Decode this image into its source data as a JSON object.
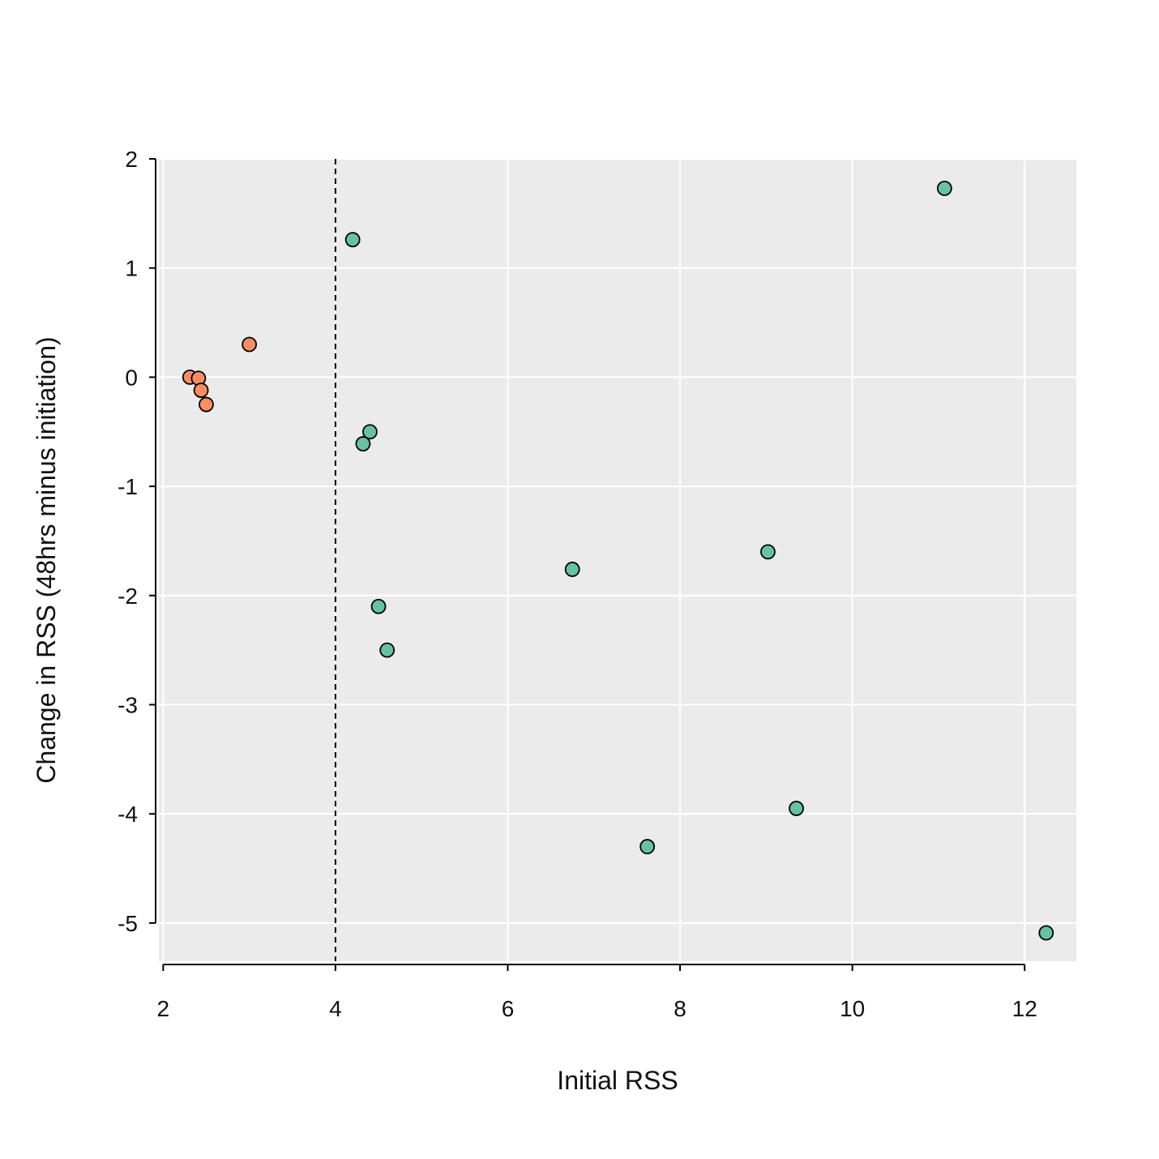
{
  "chart_data": {
    "type": "scatter",
    "title": "",
    "xlabel": "Initial RSS",
    "ylabel": "Change in RSS (48hrs minus initiation)",
    "xlim": [
      1.95,
      12.6
    ],
    "ylim": [
      -5.35,
      2.0
    ],
    "xticks": [
      2,
      4,
      6,
      8,
      10,
      12
    ],
    "yticks": [
      2,
      1,
      0,
      -1,
      -2,
      -3,
      -4,
      -5
    ],
    "xtick_labels": [
      "2",
      "4",
      "6",
      "8",
      "10",
      "12"
    ],
    "ytick_labels": [
      "2",
      "1",
      "0",
      "-1",
      "-2",
      "-3",
      "-4",
      "-5"
    ],
    "grid": true,
    "background": "#ebebeb",
    "grid_color": "#ffffff",
    "reference_line": {
      "x": 4,
      "style": "dashed",
      "color": "#000000"
    },
    "series": [
      {
        "color": "#fc8d62",
        "points": [
          {
            "x": 2.31,
            "y": 0.0
          },
          {
            "x": 2.41,
            "y": -0.01
          },
          {
            "x": 2.44,
            "y": -0.12
          },
          {
            "x": 2.5,
            "y": -0.25
          },
          {
            "x": 3.0,
            "y": 0.3
          }
        ]
      },
      {
        "color": "#66c2a5",
        "points": [
          {
            "x": 4.2,
            "y": 1.26
          },
          {
            "x": 4.4,
            "y": -0.5
          },
          {
            "x": 4.32,
            "y": -0.61
          },
          {
            "x": 4.5,
            "y": -2.1
          },
          {
            "x": 4.6,
            "y": -2.5
          },
          {
            "x": 6.75,
            "y": -1.76
          },
          {
            "x": 7.62,
            "y": -4.3
          },
          {
            "x": 9.02,
            "y": -1.6
          },
          {
            "x": 9.35,
            "y": -3.95
          },
          {
            "x": 11.07,
            "y": 1.73
          },
          {
            "x": 12.25,
            "y": -5.09
          }
        ]
      }
    ]
  }
}
